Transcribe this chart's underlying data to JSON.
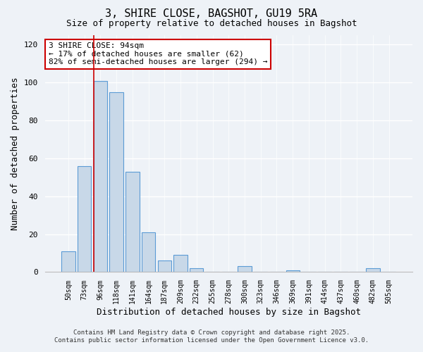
{
  "title1": "3, SHIRE CLOSE, BAGSHOT, GU19 5RA",
  "title2": "Size of property relative to detached houses in Bagshot",
  "xlabel": "Distribution of detached houses by size in Bagshot",
  "ylabel": "Number of detached properties",
  "bar_labels": [
    "50sqm",
    "73sqm",
    "96sqm",
    "118sqm",
    "141sqm",
    "164sqm",
    "187sqm",
    "209sqm",
    "232sqm",
    "255sqm",
    "278sqm",
    "300sqm",
    "323sqm",
    "346sqm",
    "369sqm",
    "391sqm",
    "414sqm",
    "437sqm",
    "460sqm",
    "482sqm",
    "505sqm"
  ],
  "bar_values": [
    11,
    56,
    101,
    95,
    53,
    21,
    6,
    9,
    2,
    0,
    0,
    3,
    0,
    0,
    1,
    0,
    0,
    0,
    0,
    2,
    0
  ],
  "bar_color": "#c8d8e8",
  "bar_edge_color": "#5b9bd5",
  "vline_color": "#cc0000",
  "vline_index": 2,
  "annotation_title": "3 SHIRE CLOSE: 94sqm",
  "annotation_line1": "← 17% of detached houses are smaller (62)",
  "annotation_line2": "82% of semi-detached houses are larger (294) →",
  "annotation_box_color": "#ffffff",
  "annotation_box_edge_color": "#cc0000",
  "ylim": [
    0,
    125
  ],
  "yticks": [
    0,
    20,
    40,
    60,
    80,
    100,
    120
  ],
  "footnote1": "Contains HM Land Registry data © Crown copyright and database right 2025.",
  "footnote2": "Contains public sector information licensed under the Open Government Licence v3.0.",
  "bg_color": "#eef2f7",
  "grid_color": "#ffffff",
  "font_family": "monospace"
}
